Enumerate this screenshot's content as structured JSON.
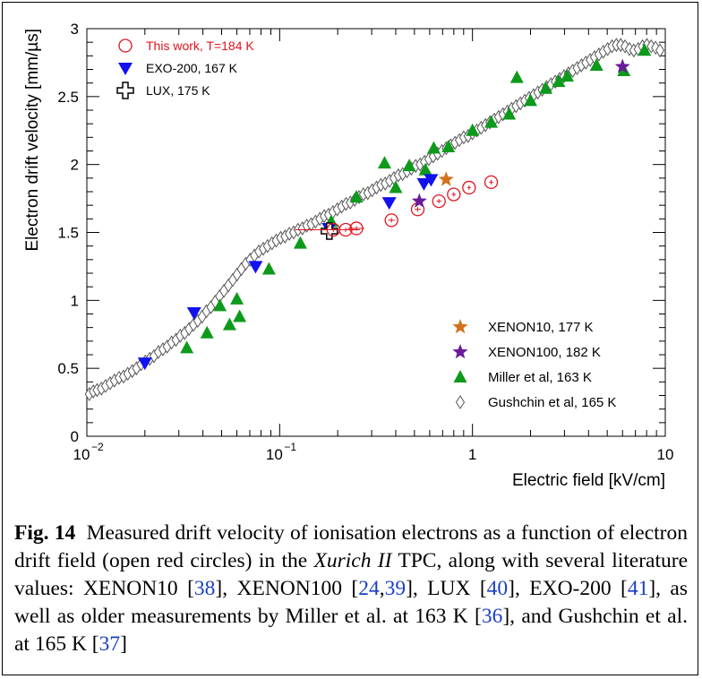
{
  "chart_data": {
    "type": "scatter",
    "x_scale": "log",
    "xlim": [
      0.01,
      10
    ],
    "ylim": [
      0,
      3
    ],
    "xlabel": "Electric field [kV/cm]",
    "ylabel": "Electron drift velocity [mm/µs]",
    "x_ticks": [
      {
        "value": 0.01,
        "base": "10",
        "exp": "−2"
      },
      {
        "value": 0.1,
        "base": "10",
        "exp": "−1"
      },
      {
        "value": 1,
        "base": "1",
        "exp": ""
      },
      {
        "value": 10,
        "base": "10",
        "exp": ""
      }
    ],
    "y_ticks": [
      {
        "value": 0,
        "label": "0"
      },
      {
        "value": 0.5,
        "label": "0.5"
      },
      {
        "value": 1,
        "label": "1"
      },
      {
        "value": 1.5,
        "label": "1.5"
      },
      {
        "value": 2,
        "label": "2"
      },
      {
        "value": 2.5,
        "label": "2.5"
      },
      {
        "value": 3,
        "label": "3"
      }
    ],
    "series": [
      {
        "name": "This work, T=184 K",
        "marker": "open-circle",
        "color": "#e0141e",
        "legend": "top-left",
        "x": [
          0.19,
          0.22,
          0.25,
          0.38,
          0.52,
          0.67,
          0.8,
          0.96,
          1.25
        ],
        "y": [
          1.52,
          1.52,
          1.53,
          1.59,
          1.67,
          1.73,
          1.78,
          1.83,
          1.87
        ],
        "xerr": [
          0.07,
          0.02,
          0.025,
          0.015,
          0.02,
          0.02,
          0.02,
          0.02,
          0.03
        ]
      },
      {
        "name": "EXO-200, 167 K",
        "marker": "triangle-down",
        "color": "#1212ee",
        "legend": "top-left",
        "x": [
          0.02,
          0.036,
          0.075,
          0.18,
          0.37,
          0.56,
          0.61
        ],
        "y": [
          0.54,
          0.91,
          1.25,
          1.53,
          1.72,
          1.86,
          1.89
        ]
      },
      {
        "name": "LUX, 175 K",
        "marker": "open-cross",
        "color": "#000000",
        "legend": "top-left",
        "x": [
          0.181
        ],
        "y": [
          1.51
        ]
      },
      {
        "name": "XENON10, 177 K",
        "marker": "star",
        "color": "#d2721c",
        "legend": "bottom-right",
        "x": [
          0.73
        ],
        "y": [
          1.89
        ]
      },
      {
        "name": "XENON100, 182 K",
        "marker": "star",
        "color": "#6a1a9a",
        "legend": "bottom-right",
        "x": [
          0.53,
          6.0
        ],
        "y": [
          1.73,
          2.72
        ]
      },
      {
        "name": "Miller et al, 163 K",
        "marker": "triangle-up",
        "color": "#0d9a1b",
        "legend": "bottom-right",
        "x": [
          0.033,
          0.042,
          0.049,
          0.055,
          0.06,
          0.062,
          0.088,
          0.128,
          0.185,
          0.25,
          0.35,
          0.4,
          0.47,
          0.57,
          0.63,
          0.75,
          1.0,
          1.25,
          1.55,
          1.7,
          2.0,
          2.4,
          2.8,
          3.1,
          4.4,
          6.1,
          7.8
        ],
        "y": [
          0.65,
          0.76,
          0.96,
          0.82,
          1.01,
          0.88,
          1.23,
          1.42,
          1.58,
          1.76,
          2.01,
          1.83,
          1.99,
          1.96,
          2.12,
          2.13,
          2.25,
          2.31,
          2.37,
          2.64,
          2.47,
          2.56,
          2.61,
          2.65,
          2.73,
          2.69,
          2.84
        ]
      },
      {
        "name": "Gushchin et al, 165 K",
        "marker": "open-diamond",
        "color": "#555555",
        "legend": "bottom-right",
        "x": [
          0.0103,
          0.0108,
          0.0113,
          0.0119,
          0.0125,
          0.0132,
          0.0139,
          0.0147,
          0.0155,
          0.0163,
          0.0172,
          0.0181,
          0.0191,
          0.0201,
          0.0212,
          0.0223,
          0.0235,
          0.0248,
          0.0261,
          0.0275,
          0.029,
          0.0305,
          0.0322,
          0.0339,
          0.0357,
          0.0376,
          0.0396,
          0.0417,
          0.044,
          0.0463,
          0.0488,
          0.0514,
          0.0542,
          0.0571,
          0.0601,
          0.0633,
          0.0667,
          0.0703,
          0.074,
          0.078,
          0.0822,
          0.0865,
          0.0912,
          0.096,
          0.1012,
          0.1066,
          0.1122,
          0.1182,
          0.1245,
          0.1312,
          0.1382,
          0.1456,
          0.1534,
          0.1616,
          0.1702,
          0.1793,
          0.1889,
          0.199,
          0.2096,
          0.2208,
          0.2326,
          0.245,
          0.2581,
          0.2719,
          0.2864,
          0.3017,
          0.3179,
          0.3349,
          0.3528,
          0.3716,
          0.3915,
          0.4124,
          0.4345,
          0.4577,
          0.4822,
          0.5079,
          0.5351,
          0.5637,
          0.5938,
          0.6255,
          0.659,
          0.6942,
          0.7313,
          0.7704,
          0.8116,
          0.855,
          0.9007,
          0.9488,
          0.9995,
          1.0529,
          1.1092,
          1.1685,
          1.231,
          1.2968,
          1.3661,
          1.4391,
          1.5161,
          1.5971,
          1.6825,
          1.7724,
          1.8672,
          1.967,
          2.0721,
          2.1829,
          2.2996,
          2.4225,
          2.552,
          2.6884,
          2.8321,
          2.9835,
          3.143,
          3.311,
          3.488,
          3.6745,
          3.8709,
          4.0778,
          4.2958,
          4.5254,
          4.7673,
          5.0222,
          5.2906,
          5.5734,
          5.8714,
          6.1852,
          6.5159,
          6.8642,
          7.2311,
          7.6176,
          8.0248,
          8.4538,
          8.9057,
          9.3817
        ],
        "y": [
          0.31,
          0.33,
          0.34,
          0.35,
          0.37,
          0.39,
          0.41,
          0.43,
          0.44,
          0.46,
          0.48,
          0.5,
          0.53,
          0.55,
          0.57,
          0.59,
          0.62,
          0.64,
          0.66,
          0.69,
          0.71,
          0.74,
          0.76,
          0.79,
          0.82,
          0.85,
          0.88,
          0.92,
          0.95,
          0.99,
          1.03,
          1.07,
          1.11,
          1.15,
          1.19,
          1.23,
          1.27,
          1.3,
          1.33,
          1.36,
          1.38,
          1.4,
          1.42,
          1.44,
          1.46,
          1.47,
          1.49,
          1.5,
          1.52,
          1.53,
          1.55,
          1.56,
          1.58,
          1.6,
          1.62,
          1.63,
          1.65,
          1.67,
          1.69,
          1.71,
          1.72,
          1.74,
          1.76,
          1.78,
          1.79,
          1.81,
          1.83,
          1.85,
          1.86,
          1.88,
          1.9,
          1.92,
          1.93,
          1.95,
          1.97,
          1.99,
          2.0,
          2.02,
          2.04,
          2.06,
          2.08,
          2.1,
          2.12,
          2.14,
          2.16,
          2.18,
          2.2,
          2.21,
          2.23,
          2.25,
          2.27,
          2.29,
          2.31,
          2.33,
          2.35,
          2.37,
          2.39,
          2.41,
          2.43,
          2.45,
          2.47,
          2.49,
          2.51,
          2.53,
          2.55,
          2.57,
          2.59,
          2.61,
          2.63,
          2.65,
          2.67,
          2.69,
          2.71,
          2.73,
          2.75,
          2.77,
          2.79,
          2.81,
          2.83,
          2.85,
          2.87,
          2.88,
          2.88,
          2.87,
          2.85,
          2.84,
          2.85,
          2.87,
          2.88,
          2.87,
          2.86,
          2.84
        ]
      }
    ]
  },
  "caption": {
    "figure_label": "Fig. 14",
    "p1": "Measured drift velocity of ionisation electrons as a function of electron drift field (open red circles) in the ",
    "tpc_name": "Xurich II",
    "p2": " TPC, along with several literature values: XENON10 [",
    "r1": "38",
    "p3": "], XENON100 [",
    "r2": "24",
    "p4": ",",
    "r3": "39",
    "p5": "], LUX [",
    "r4": "40",
    "p6": "], EXO-200 [",
    "r5": "41",
    "p7": "], as well as older measurements by Miller et al. at 163 K [",
    "r6": "36",
    "p8": "], and Gushchin et al. at 165 K [",
    "r7": "37",
    "p9": "]"
  }
}
